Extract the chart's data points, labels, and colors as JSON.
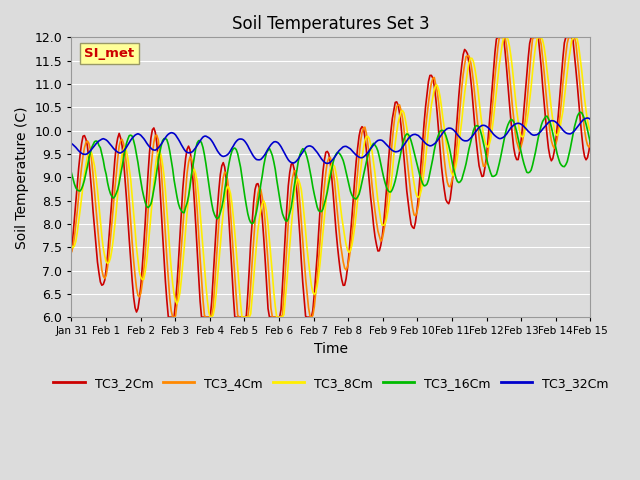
{
  "title": "Soil Temperatures Set 3",
  "xlabel": "Time",
  "ylabel": "Soil Temperature (C)",
  "ylim": [
    6.0,
    12.0
  ],
  "yticks": [
    6.0,
    6.5,
    7.0,
    7.5,
    8.0,
    8.5,
    9.0,
    9.5,
    10.0,
    10.5,
    11.0,
    11.5,
    12.0
  ],
  "colors": {
    "TC3_2Cm": "#cc0000",
    "TC3_4Cm": "#ff8800",
    "TC3_8Cm": "#ffee00",
    "TC3_16Cm": "#00bb00",
    "TC3_32Cm": "#0000cc"
  },
  "legend_labels": [
    "TC3_2Cm",
    "TC3_4Cm",
    "TC3_8Cm",
    "TC3_16Cm",
    "TC3_32Cm"
  ],
  "xtick_labels": [
    "Jan 31",
    "Feb 1",
    "Feb 2",
    "Feb 3",
    "Feb 4",
    "Feb 5",
    "Feb 6",
    "Feb 7",
    "Feb 8",
    "Feb 9",
    "Feb 10",
    "Feb 11",
    "Feb 12",
    "Feb 13",
    "Feb 14",
    "Feb 15"
  ],
  "watermark_text": "SI_met",
  "watermark_color": "#cc0000",
  "watermark_bg": "#ffff99",
  "plot_bg_color": "#dcdcdc",
  "grid_color": "#ffffff",
  "linewidth": 1.2,
  "n_days": 15
}
